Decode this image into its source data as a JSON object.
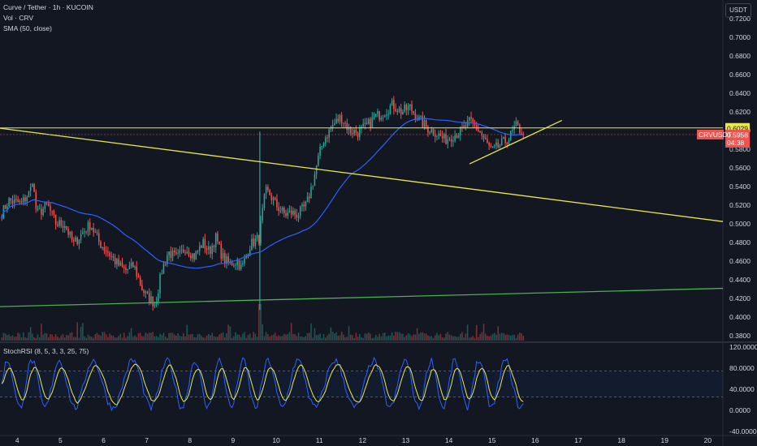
{
  "legend": {
    "symbol": "Curve / Tether · 1h · KUCOIN",
    "volume": "Vol · CRV",
    "sma": "SMA (50, close)",
    "stoch": "StochRSI (8, 5, 3, 3, 25, 75)"
  },
  "currency": "USDT",
  "colors": {
    "background": "#131722",
    "up": "#26a69a",
    "down": "#ef5350",
    "sma": "#2962ff",
    "trendline": "#e8e84a",
    "support": "#4caf50",
    "stoch_k": "#2962ff",
    "stoch_d": "#e8e84a"
  },
  "chart_data": {
    "type": "candlestick",
    "price_axis": {
      "ticks": [
        "0.7200",
        "0.7000",
        "0.6800",
        "0.6600",
        "0.6400",
        "0.6200",
        "0.6000",
        "0.5800",
        "0.5600",
        "0.5400",
        "0.5200",
        "0.5000",
        "0.4800",
        "0.4600",
        "0.4400",
        "0.4200",
        "0.4000",
        "0.3800"
      ],
      "range": [
        0.375,
        0.74
      ]
    },
    "time_axis": {
      "ticks": [
        "4",
        "5",
        "6",
        "7",
        "8",
        "9",
        "10",
        "11",
        "12",
        "13",
        "14",
        "15",
        "16",
        "17",
        "18",
        "19",
        "20"
      ],
      "range_days": [
        3.6,
        20.35
      ]
    },
    "stoch_axis": {
      "ticks": [
        "120.0000",
        "80.0000",
        "40.0000",
        "0.0000",
        "-40.0000"
      ],
      "range": [
        -45,
        125
      ],
      "bands": [
        75,
        25
      ]
    },
    "waypoints": [
      [
        3.6,
        0.508
      ],
      [
        3.8,
        0.525
      ],
      [
        4.1,
        0.522
      ],
      [
        4.3,
        0.535
      ],
      [
        4.35,
        0.548
      ],
      [
        4.45,
        0.51
      ],
      [
        4.7,
        0.52
      ],
      [
        4.9,
        0.5
      ],
      [
        5.1,
        0.5
      ],
      [
        5.3,
        0.478
      ],
      [
        5.5,
        0.49
      ],
      [
        5.7,
        0.5
      ],
      [
        5.9,
        0.48
      ],
      [
        6.1,
        0.47
      ],
      [
        6.3,
        0.458
      ],
      [
        6.5,
        0.45
      ],
      [
        6.7,
        0.455
      ],
      [
        6.9,
        0.43
      ],
      [
        7.0,
        0.422
      ],
      [
        7.2,
        0.415
      ],
      [
        7.35,
        0.45
      ],
      [
        7.5,
        0.47
      ],
      [
        7.7,
        0.463
      ],
      [
        7.9,
        0.475
      ],
      [
        8.1,
        0.465
      ],
      [
        8.3,
        0.48
      ],
      [
        8.45,
        0.47
      ],
      [
        8.6,
        0.485
      ],
      [
        8.75,
        0.465
      ],
      [
        8.9,
        0.457
      ],
      [
        9.1,
        0.46
      ],
      [
        9.2,
        0.452
      ],
      [
        9.4,
        0.478
      ],
      [
        9.6,
        0.485
      ],
      [
        9.75,
        0.535
      ],
      [
        9.85,
        0.532
      ],
      [
        10.0,
        0.52
      ],
      [
        10.2,
        0.51
      ],
      [
        10.35,
        0.512
      ],
      [
        10.5,
        0.51
      ],
      [
        10.7,
        0.52
      ],
      [
        10.85,
        0.545
      ],
      [
        11.0,
        0.575
      ],
      [
        11.1,
        0.59
      ],
      [
        11.3,
        0.605
      ],
      [
        11.5,
        0.615
      ],
      [
        11.7,
        0.6
      ],
      [
        11.9,
        0.598
      ],
      [
        12.1,
        0.605
      ],
      [
        12.3,
        0.615
      ],
      [
        12.5,
        0.62
      ],
      [
        12.7,
        0.628
      ],
      [
        12.9,
        0.62
      ],
      [
        13.1,
        0.625
      ],
      [
        13.3,
        0.612
      ],
      [
        13.5,
        0.603
      ],
      [
        13.7,
        0.598
      ],
      [
        13.9,
        0.59
      ],
      [
        14.1,
        0.595
      ],
      [
        14.3,
        0.6
      ],
      [
        14.5,
        0.61
      ],
      [
        14.7,
        0.6
      ],
      [
        14.85,
        0.588
      ],
      [
        15.0,
        0.578
      ],
      [
        15.2,
        0.585
      ],
      [
        15.4,
        0.592
      ],
      [
        15.55,
        0.605
      ],
      [
        15.7,
        0.599
      ],
      [
        15.75,
        0.5958
      ]
    ],
    "last_price": "0.5958",
    "countdown": "04:38",
    "ticker": "CRVUSDT",
    "line_label": "0.6029",
    "horizontal_resistance": 0.6029,
    "drawings": [
      {
        "kind": "trendline",
        "from": [
          3.6,
          0.6026
        ],
        "to": [
          20.35,
          0.5026
        ]
      },
      {
        "kind": "trendline",
        "from": [
          14.48,
          0.5644
        ],
        "to": [
          16.62,
          0.611
        ]
      },
      {
        "kind": "trendline",
        "from": [
          3.6,
          0.4114
        ],
        "to": [
          20.35,
          0.431
        ]
      }
    ],
    "spike_candle": {
      "day": 9.62,
      "high": 0.599,
      "low": 0.408
    }
  }
}
